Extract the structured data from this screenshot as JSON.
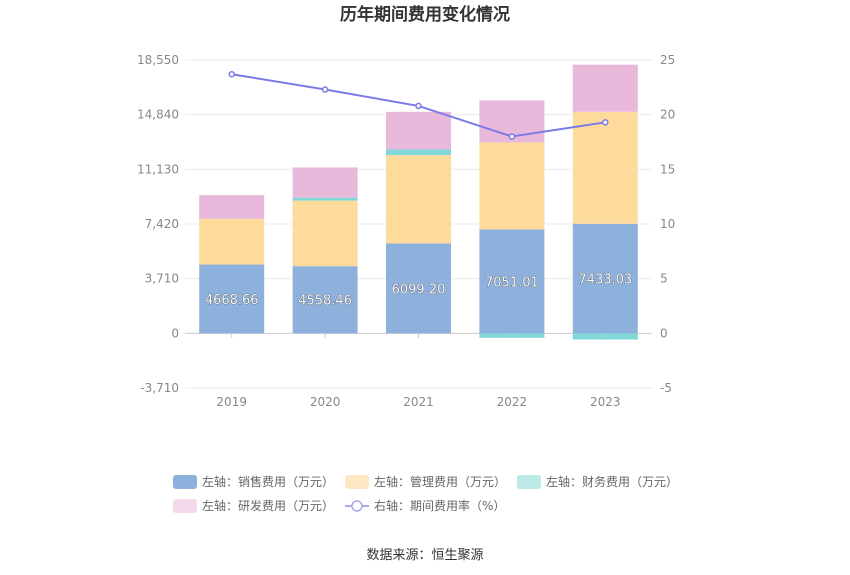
{
  "chart_data": {
    "type": "bar",
    "title": "历年期间费用变化情况",
    "categories": [
      "2019",
      "2020",
      "2021",
      "2022",
      "2023"
    ],
    "left_axis": {
      "ticks": [
        "-3,710",
        "0",
        "3,710",
        "7,420",
        "11,130",
        "14,840",
        "18,550"
      ],
      "ylim": [
        -3710,
        18550
      ]
    },
    "right_axis": {
      "ticks": [
        "-5",
        "0",
        "5",
        "10",
        "15",
        "20",
        "25"
      ],
      "ylim": [
        -5,
        25
      ]
    },
    "series": [
      {
        "name": "左轴：销售费用（万元）",
        "kind": "bar",
        "color": "#8eb0dc",
        "values": [
          4668.66,
          4558.46,
          6099.2,
          7051.01,
          7433.03
        ],
        "labels": [
          "4668.66",
          "4558.46",
          "6099.20",
          "7051.01",
          "7433.03"
        ]
      },
      {
        "name": "左轴：管理费用（万元）",
        "kind": "bar",
        "color": "#fedb9d",
        "values": [
          3100,
          4450,
          6000,
          5900,
          7600
        ]
      },
      {
        "name": "左轴：财务费用（万元）",
        "kind": "bar",
        "color": "#80d8d8",
        "values": [
          10,
          200,
          380,
          -300,
          -420
        ]
      },
      {
        "name": "左轴：研发费用（万元）",
        "kind": "bar",
        "color": "#e8b9da",
        "values": [
          1600,
          2050,
          2550,
          2850,
          3200
        ]
      },
      {
        "name": "右轴：期间费用率（%）",
        "kind": "line",
        "color": "#7b7be6",
        "values": [
          23.7,
          22.3,
          20.8,
          18.0,
          19.3
        ]
      }
    ]
  },
  "source_text": "数据来源：恒生聚源"
}
